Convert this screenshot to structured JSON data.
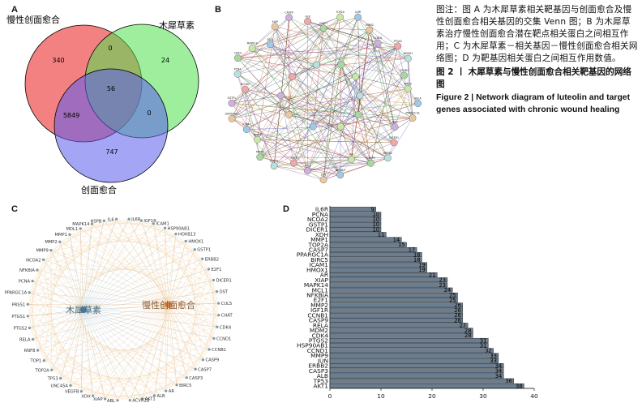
{
  "panels": {
    "a": "A",
    "b": "B",
    "c": "C",
    "d": "D"
  },
  "venn": {
    "label_chronic_wound": "慢性创面愈合",
    "label_luteolin": "木犀草素",
    "label_wound_healing": "创面愈合",
    "values": {
      "only_chronic": "340",
      "chronic_luteolin": "0",
      "only_luteolin": "24",
      "all_three": "56",
      "chronic_wound": "5849",
      "luteolin_wound": "0",
      "only_wound": "747"
    },
    "colors": {
      "chronic": "#ef4b4b",
      "luteolin": "#4fe04f",
      "wound": "#5b5bef"
    }
  },
  "ppi_network": {
    "labels": [
      "CASP7",
      "TOP2A",
      "IL6R",
      "MDM2",
      "CCND1",
      "PTGS2",
      "HMOX1",
      "CCNB1",
      "BIRC5",
      "RELA",
      "PPARGC1A",
      "XDH",
      "DICER1",
      "ERBB2",
      "CASP3",
      "AR",
      "NFKBIA",
      "JUN",
      "TP53",
      "AKT1",
      "IGF1R",
      "MMP2",
      "MMP9",
      "ICAM1",
      "HSP90AB1",
      "GSTP1",
      "NCOA2",
      "PCNA",
      "CDK4",
      "MAPK14",
      "E2F1",
      "XIAP",
      "CASP9",
      "ALB"
    ]
  },
  "network_c": {
    "hub_luteolin": "木犀草素",
    "hub_disease": "慢性创面愈合",
    "nodes": [
      "IL6R",
      "IGF1R",
      "ICAM1",
      "HSP90AB1",
      "HOXB13",
      "HMOX1",
      "GSTP1",
      "ERBB2",
      "E2F1",
      "DICER1",
      "DST",
      "CUL5",
      "CHAT",
      "CDK4",
      "CCND1",
      "CCNB1",
      "CASP9",
      "CASP7",
      "CASP3",
      "BIRC5",
      "AR",
      "ALB",
      "AKT1",
      "ACVR2B",
      "ABL",
      "XIAP",
      "XDH",
      "VEGFB",
      "UNC45A",
      "TP53",
      "TOP2A",
      "TOP1",
      "RNF8",
      "RELA",
      "PTGS2",
      "PTGS1",
      "PRSS1",
      "PPARGC1A",
      "PCNA",
      "NFKBIA",
      "NCOA2",
      "MMP9",
      "MMP2",
      "MMP1",
      "MDL1",
      "MAPK14",
      "HSPB",
      "IL6"
    ]
  },
  "chart_data": {
    "type": "bar",
    "orientation": "horizontal",
    "categories": [
      "IL6R",
      "PCNA",
      "NCOA2",
      "GSTP1",
      "DICER1",
      "XDH",
      "MMP1",
      "TOP2A",
      "CASP7",
      "PPARGC1A",
      "BIRC5",
      "ICAM1",
      "HMOX1",
      "AR",
      "XIAP",
      "MAPK14",
      "MCL1",
      "NFKBIA",
      "E2F1",
      "MMP2",
      "IGF1R",
      "CCNB1",
      "CASP9",
      "RELA",
      "MDM2",
      "CDK4",
      "PTGS2",
      "HSP90AB1",
      "CCND1",
      "MMP9",
      "JUN",
      "ERBB2",
      "CASP3",
      "ALB",
      "TP53",
      "AKT1"
    ],
    "values": [
      9,
      10,
      10,
      10,
      10,
      11,
      14,
      15,
      17,
      18,
      18,
      19,
      19,
      21,
      23,
      23,
      24,
      25,
      25,
      26,
      26,
      26,
      26,
      27,
      28,
      28,
      31,
      31,
      32,
      33,
      33,
      34,
      34,
      34,
      36,
      38
    ],
    "xticks": [
      0,
      10,
      20,
      30,
      40
    ],
    "xlim": [
      0,
      40
    ],
    "bar_color": "#6b7d8e"
  },
  "caption": {
    "body_cn": "图注：图 A 为木犀草素相关靶基因与创面愈合及慢性创面愈合相关基因的交集 Venn 图；B 为木犀草素治疗慢性创面愈合潜在靶点相关蛋白之间相互作用；C 为木犀草素－相关基因－慢性创面愈合相关网络图；D 为靶基因相关蛋白之间相互作用数值。",
    "title_cn": "图 2 丨 木犀草素与慢性创面愈合相关靶基因的网络图",
    "title_en": "Figure 2 | Network diagram of luteolin and target genes associated with chronic wound healing"
  }
}
